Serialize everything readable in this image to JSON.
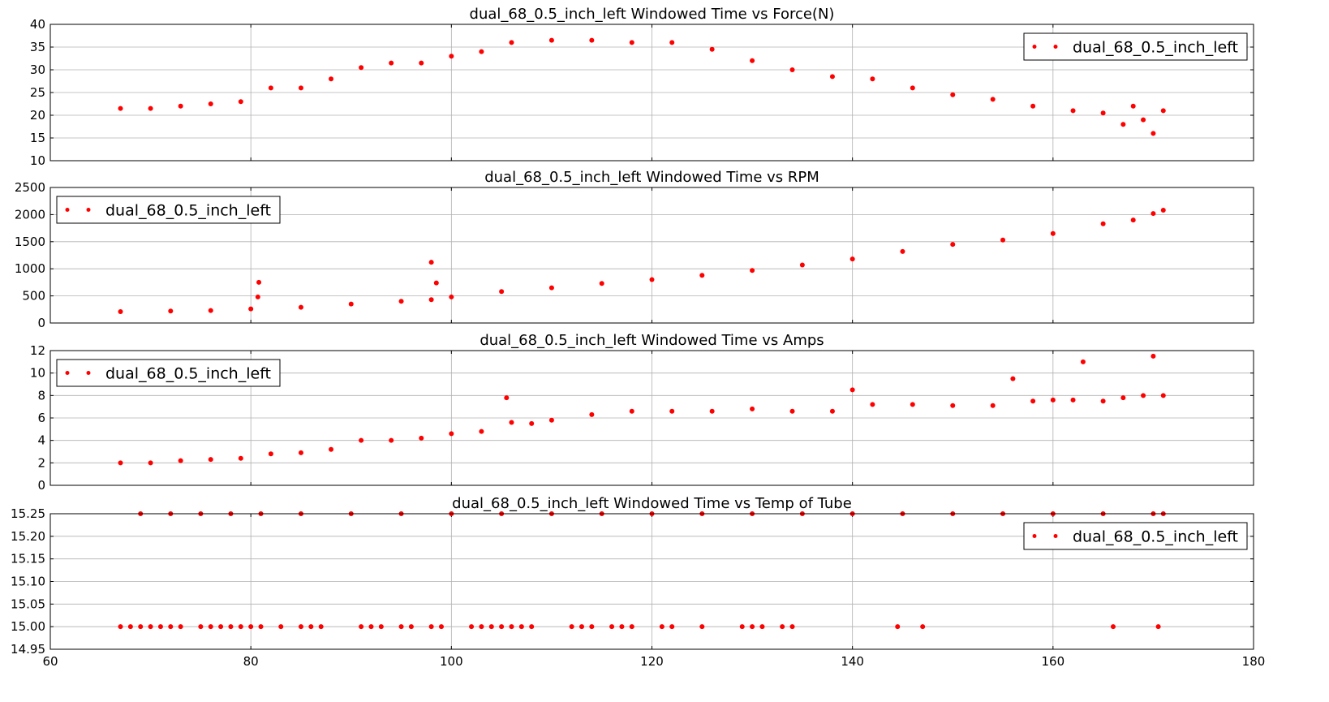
{
  "chart_data": [
    {
      "type": "scatter",
      "title": "dual_68_0.5_inch_left Windowed Time vs Force(N)",
      "xlabel": "",
      "ylabel": "",
      "xlim": [
        60,
        180
      ],
      "ylim": [
        10,
        40
      ],
      "xticks": [],
      "yticks": [
        "10",
        "15",
        "20",
        "25",
        "30",
        "35",
        "40"
      ],
      "grid": true,
      "legend": {
        "position": "top-right",
        "entries": [
          "dual_68_0.5_inch_left"
        ]
      },
      "series": [
        {
          "name": "dual_68_0.5_inch_left",
          "color": "#ff0000",
          "x": [
            67,
            70,
            73,
            76,
            79,
            82,
            85,
            88,
            91,
            94,
            97,
            100,
            103,
            106,
            110,
            114,
            118,
            122,
            126,
            130,
            134,
            138,
            142,
            146,
            150,
            154,
            158,
            162,
            165,
            167,
            168,
            169,
            170,
            171
          ],
          "y": [
            21.5,
            21.5,
            22,
            22.5,
            23,
            26,
            26,
            28,
            30.5,
            31.5,
            31.5,
            33,
            34,
            36,
            36.5,
            36.5,
            36,
            36,
            34.5,
            32,
            30,
            28.5,
            28,
            26,
            24.5,
            23.5,
            22,
            21,
            20.5,
            18,
            22,
            19,
            16,
            21
          ]
        }
      ]
    },
    {
      "type": "scatter",
      "title": "dual_68_0.5_inch_left Windowed Time vs RPM",
      "xlabel": "",
      "ylabel": "",
      "xlim": [
        60,
        180
      ],
      "ylim": [
        0,
        2500
      ],
      "xticks": [],
      "yticks": [
        "0",
        "500",
        "1000",
        "1500",
        "2000",
        "2500"
      ],
      "grid": true,
      "legend": {
        "position": "top-left",
        "entries": [
          "dual_68_0.5_inch_left"
        ]
      },
      "series": [
        {
          "name": "dual_68_0.5_inch_left",
          "color": "#ff0000",
          "x": [
            67,
            72,
            76,
            80,
            80.7,
            80.8,
            85,
            90,
            95,
            98,
            98,
            98.5,
            100,
            105,
            110,
            115,
            120,
            125,
            130,
            135,
            140,
            145,
            150,
            155,
            160,
            165,
            168,
            170,
            171
          ],
          "y": [
            210,
            220,
            230,
            260,
            480,
            750,
            290,
            350,
            400,
            430,
            1120,
            740,
            480,
            580,
            650,
            730,
            800,
            880,
            970,
            1070,
            1180,
            1320,
            1450,
            1530,
            1650,
            1830,
            1900,
            2020,
            2080
          ]
        }
      ]
    },
    {
      "type": "scatter",
      "title": "dual_68_0.5_inch_left Windowed Time vs Amps",
      "xlabel": "",
      "ylabel": "",
      "xlim": [
        60,
        180
      ],
      "ylim": [
        0,
        12
      ],
      "xticks": [],
      "yticks": [
        "0",
        "2",
        "4",
        "6",
        "8",
        "10",
        "12"
      ],
      "grid": true,
      "legend": {
        "position": "top-left",
        "entries": [
          "dual_68_0.5_inch_left"
        ]
      },
      "series": [
        {
          "name": "dual_68_0.5_inch_left",
          "color": "#ff0000",
          "x": [
            67,
            70,
            73,
            76,
            79,
            82,
            85,
            88,
            91,
            94,
            97,
            100,
            103,
            105.5,
            106,
            108,
            110,
            114,
            118,
            122,
            126,
            130,
            134,
            138,
            140,
            142,
            146,
            150,
            154,
            156,
            158,
            160,
            162,
            163,
            165,
            167,
            169,
            170,
            171
          ],
          "y": [
            2,
            2,
            2.2,
            2.3,
            2.4,
            2.8,
            2.9,
            3.2,
            4,
            4,
            4.2,
            4.6,
            4.8,
            7.8,
            5.6,
            5.5,
            5.8,
            6.3,
            6.6,
            6.6,
            6.6,
            6.8,
            6.6,
            6.6,
            8.5,
            7.2,
            7.2,
            7.1,
            7.1,
            9.5,
            7.5,
            7.6,
            7.6,
            11,
            7.5,
            7.8,
            8,
            11.5,
            8
          ]
        }
      ]
    },
    {
      "type": "scatter",
      "title": "dual_68_0.5_inch_left Windowed Time vs Temp of Tube",
      "xlabel": "",
      "ylabel": "",
      "xlim": [
        60,
        180
      ],
      "ylim": [
        14.95,
        15.25
      ],
      "xticks": [
        "60",
        "80",
        "100",
        "120",
        "140",
        "160",
        "180"
      ],
      "yticks": [
        "14.95",
        "15.00",
        "15.05",
        "15.10",
        "15.15",
        "15.20",
        "15.25"
      ],
      "grid": true,
      "legend": {
        "position": "top-right",
        "entries": [
          "dual_68_0.5_inch_left"
        ]
      },
      "series": [
        {
          "name": "dual_68_0.5_inch_left",
          "color": "#ff0000",
          "x": [
            69,
            72,
            75,
            78,
            81,
            85,
            90,
            95,
            100,
            105,
            110,
            115,
            120,
            125,
            130,
            135,
            140,
            145,
            150,
            155,
            160,
            165,
            170,
            171,
            67,
            68,
            69,
            70,
            71,
            72,
            73,
            75,
            76,
            77,
            78,
            79,
            80,
            81,
            83,
            85,
            86,
            87,
            91,
            92,
            93,
            95,
            96,
            98,
            99,
            102,
            103,
            104,
            105,
            106,
            107,
            108,
            112,
            113,
            114,
            116,
            117,
            118,
            121,
            122,
            125,
            129,
            130,
            131,
            133,
            134,
            144.5,
            147,
            166,
            170.5
          ],
          "y": [
            15.25,
            15.25,
            15.25,
            15.25,
            15.25,
            15.25,
            15.25,
            15.25,
            15.25,
            15.25,
            15.25,
            15.25,
            15.25,
            15.25,
            15.25,
            15.25,
            15.25,
            15.25,
            15.25,
            15.25,
            15.25,
            15.25,
            15.25,
            15.25,
            15,
            15,
            15,
            15,
            15,
            15,
            15,
            15,
            15,
            15,
            15,
            15,
            15,
            15,
            15,
            15,
            15,
            15,
            15,
            15,
            15,
            15,
            15,
            15,
            15,
            15,
            15,
            15,
            15,
            15,
            15,
            15,
            15,
            15,
            15,
            15,
            15,
            15,
            15,
            15,
            15,
            15,
            15,
            15,
            15,
            15,
            15,
            15,
            15,
            15
          ]
        }
      ]
    }
  ]
}
